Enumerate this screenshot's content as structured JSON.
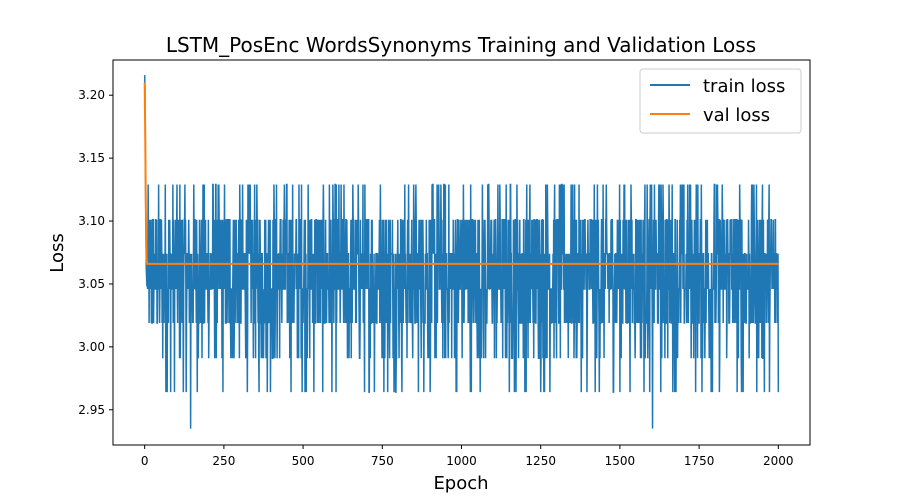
{
  "chart_data": {
    "type": "line",
    "title": "LSTM_PosEnc WordsSynonyms Training and Validation Loss",
    "xlabel": "Epoch",
    "ylabel": "Loss",
    "xlim": [
      -100,
      2100
    ],
    "ylim": [
      2.922,
      3.228
    ],
    "x_ticks": [
      0,
      250,
      500,
      750,
      1000,
      1250,
      1500,
      1750,
      2000
    ],
    "x_tick_labels": [
      "0",
      "250",
      "500",
      "750",
      "1000",
      "1250",
      "1500",
      "1750",
      "2000"
    ],
    "y_ticks": [
      2.95,
      3.0,
      3.05,
      3.1,
      3.15,
      3.2
    ],
    "y_tick_labels": [
      "2.95",
      "3.00",
      "3.05",
      "3.10",
      "3.15",
      "3.20"
    ],
    "grid": false,
    "legend_position": "top-right",
    "series": [
      {
        "name": "train loss",
        "color": "#1f77b4",
        "x_start": 0,
        "x_end": 2000,
        "initial": [
          3.216,
          3.205,
          3.17,
          3.12,
          3.09,
          3.062,
          3.055,
          3.048
        ],
        "levels": [
          2.964,
          2.991,
          3.019,
          3.046,
          3.074,
          3.101,
          3.129
        ],
        "level_weights": [
          0.03,
          0.07,
          0.17,
          0.26,
          0.22,
          0.18,
          0.07
        ],
        "spikes": [
          {
            "x": 145,
            "y": 2.935
          },
          {
            "x": 1603,
            "y": 2.935
          }
        ]
      },
      {
        "name": "val loss",
        "color": "#ff7f0e",
        "x": [
          0,
          2,
          4,
          6,
          8,
          2000
        ],
        "y": [
          3.21,
          3.16,
          3.1,
          3.07,
          3.066,
          3.066
        ]
      }
    ]
  }
}
